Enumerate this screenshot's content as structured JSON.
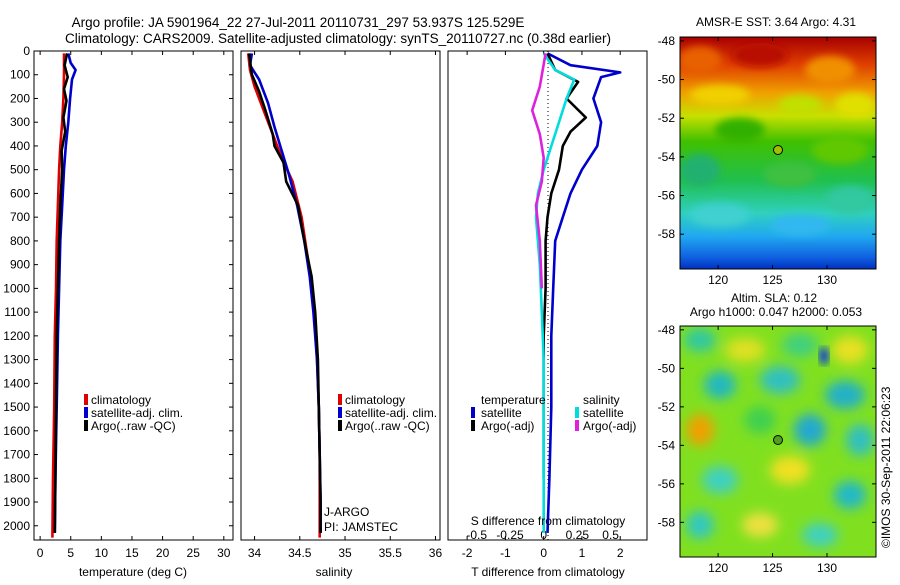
{
  "header": {
    "line1": "Argo profile: JA 5901964_22 27-Jul-2011 20110731_297 53.937S 125.529E",
    "line2": "Climatology: CARS2009. Satellite-adjusted climatology: synTS_20110727.nc (0.38d earlier)"
  },
  "colors": {
    "climatology": "#dd0000",
    "satellite": "#0000cc",
    "argo": "#000000",
    "sal_satellite": "#00dddd",
    "sal_argo": "#dd22dd"
  },
  "chart_data": [
    {
      "type": "line",
      "panel": "temperature",
      "xlabel": "temperature (deg C)",
      "xlim": [
        -1,
        31.5
      ],
      "xticks": [
        0,
        5,
        10,
        15,
        20,
        25,
        30
      ],
      "ylim": [
        0,
        2060
      ],
      "yticks": [
        0,
        100,
        200,
        300,
        400,
        500,
        600,
        700,
        800,
        900,
        1000,
        1100,
        1200,
        1300,
        1400,
        1500,
        1600,
        1700,
        1800,
        1900,
        2000
      ],
      "legend": [
        "climatology",
        "satellite-adj. clim.",
        "Argo(..raw -QC)"
      ],
      "series": [
        {
          "name": "climatology",
          "color": "#dd0000",
          "points": [
            [
              3.9,
              10
            ],
            [
              3.9,
              50
            ],
            [
              3.9,
              100
            ],
            [
              3.8,
              200
            ],
            [
              3.6,
              300
            ],
            [
              3.3,
              400
            ],
            [
              3.1,
              500
            ],
            [
              2.9,
              650
            ],
            [
              2.7,
              800
            ],
            [
              2.6,
              1000
            ],
            [
              2.4,
              1200
            ],
            [
              2.3,
              1500
            ],
            [
              2.1,
              1800
            ],
            [
              2.0,
              2050
            ]
          ]
        },
        {
          "name": "satellite-adj. clim.",
          "color": "#0000cc",
          "points": [
            [
              4.6,
              10
            ],
            [
              5.0,
              50
            ],
            [
              5.8,
              80
            ],
            [
              5.2,
              120
            ],
            [
              4.9,
              200
            ],
            [
              4.6,
              300
            ],
            [
              4.2,
              400
            ],
            [
              3.9,
              500
            ],
            [
              3.6,
              650
            ],
            [
              3.3,
              800
            ],
            [
              3.1,
              1000
            ],
            [
              2.9,
              1200
            ],
            [
              2.7,
              1500
            ],
            [
              2.5,
              1800
            ],
            [
              2.4,
              2030
            ]
          ]
        },
        {
          "name": "Argo(..raw -QC)",
          "color": "#000000",
          "points": [
            [
              4.4,
              10
            ],
            [
              4.0,
              60
            ],
            [
              4.5,
              110
            ],
            [
              3.9,
              160
            ],
            [
              4.3,
              210
            ],
            [
              3.8,
              280
            ],
            [
              4.1,
              340
            ],
            [
              3.5,
              420
            ],
            [
              3.6,
              500
            ],
            [
              3.3,
              650
            ],
            [
              3.1,
              800
            ],
            [
              2.9,
              1000
            ],
            [
              2.7,
              1200
            ],
            [
              2.6,
              1500
            ],
            [
              2.5,
              1800
            ],
            [
              2.4,
              2030
            ]
          ]
        }
      ]
    },
    {
      "type": "line",
      "panel": "salinity",
      "xlabel": "salinity",
      "xlim": [
        33.85,
        36.05
      ],
      "xticks": [
        34,
        34.5,
        35,
        35.5,
        36
      ],
      "ylim": [
        0,
        2060
      ],
      "legend": [
        "climatology",
        "satellite-adj. clim.",
        "Argo(..raw -QC)"
      ],
      "series": [
        {
          "name": "climatology",
          "color": "#dd0000",
          "points": [
            [
              33.93,
              10
            ],
            [
              33.95,
              80
            ],
            [
              34.0,
              150
            ],
            [
              34.1,
              250
            ],
            [
              34.2,
              350
            ],
            [
              34.3,
              450
            ],
            [
              34.42,
              550
            ],
            [
              34.52,
              700
            ],
            [
              34.6,
              900
            ],
            [
              34.66,
              1100
            ],
            [
              34.69,
              1300
            ],
            [
              34.71,
              1500
            ],
            [
              34.72,
              1700
            ],
            [
              34.72,
              1900
            ],
            [
              34.72,
              2050
            ]
          ]
        },
        {
          "name": "satellite-adj. clim.",
          "color": "#0000cc",
          "points": [
            [
              33.97,
              10
            ],
            [
              33.95,
              60
            ],
            [
              34.05,
              120
            ],
            [
              34.15,
              220
            ],
            [
              34.22,
              320
            ],
            [
              34.3,
              420
            ],
            [
              34.38,
              520
            ],
            [
              34.47,
              650
            ],
            [
              34.55,
              800
            ],
            [
              34.61,
              950
            ],
            [
              34.65,
              1100
            ],
            [
              34.69,
              1300
            ],
            [
              34.71,
              1500
            ],
            [
              34.72,
              1700
            ],
            [
              34.73,
              1900
            ],
            [
              34.73,
              2030
            ]
          ]
        },
        {
          "name": "Argo(..raw -QC)",
          "color": "#000000",
          "points": [
            [
              33.94,
              10
            ],
            [
              33.97,
              100
            ],
            [
              34.05,
              170
            ],
            [
              34.12,
              250
            ],
            [
              34.2,
              350
            ],
            [
              34.22,
              400
            ],
            [
              34.32,
              470
            ],
            [
              34.35,
              550
            ],
            [
              34.48,
              650
            ],
            [
              34.55,
              800
            ],
            [
              34.63,
              950
            ],
            [
              34.67,
              1100
            ],
            [
              34.7,
              1300
            ],
            [
              34.71,
              1500
            ],
            [
              34.72,
              1700
            ],
            [
              34.73,
              1900
            ],
            [
              34.73,
              2030
            ]
          ]
        }
      ],
      "annotations": [
        "J-ARGO",
        "PI: JAMSTEC"
      ]
    },
    {
      "type": "line",
      "panel": "difference",
      "xlabel": "T difference from climatology",
      "xlabel_top": "S difference from climatology",
      "xlim": [
        -2.5,
        2.7
      ],
      "xticks": [
        -2,
        -1,
        0,
        1,
        2
      ],
      "xticks_top": [
        "-0.5",
        "-0.25",
        "0",
        "0.25",
        "0.5"
      ],
      "ylim": [
        0,
        2060
      ],
      "legend": [
        "temperature",
        "satellite",
        "Argo(-adj)",
        "salinity",
        "satellite",
        "Argo(-adj)"
      ],
      "series": [
        {
          "name": "T satellite",
          "color": "#0000cc",
          "points": [
            [
              0.1,
              10
            ],
            [
              0.7,
              60
            ],
            [
              2.0,
              90
            ],
            [
              1.5,
              110
            ],
            [
              1.3,
              200
            ],
            [
              1.5,
              300
            ],
            [
              1.4,
              400
            ],
            [
              1.0,
              500
            ],
            [
              0.7,
              600
            ],
            [
              0.5,
              700
            ],
            [
              0.3,
              800
            ],
            [
              0.25,
              1000
            ],
            [
              0.2,
              1200
            ],
            [
              0.2,
              1500
            ],
            [
              0.15,
              1800
            ],
            [
              0.1,
              2030
            ]
          ]
        },
        {
          "name": "T Argo(-adj)",
          "color": "#000000",
          "points": [
            [
              0.1,
              10
            ],
            [
              0.3,
              80
            ],
            [
              0.9,
              130
            ],
            [
              0.6,
              200
            ],
            [
              1.1,
              280
            ],
            [
              0.7,
              340
            ],
            [
              0.5,
              400
            ],
            [
              0.4,
              500
            ],
            [
              0.2,
              600
            ],
            [
              0.1,
              700
            ],
            [
              0.05,
              800
            ],
            [
              0.05,
              1000
            ],
            [
              0.0,
              1200
            ],
            [
              0.0,
              1500
            ],
            [
              0.0,
              1800
            ]
          ]
        },
        {
          "name": "S satellite",
          "color": "#00dddd",
          "points": [
            [
              0.0,
              10
            ],
            [
              0.3,
              80
            ],
            [
              0.8,
              120
            ],
            [
              0.6,
              200
            ],
            [
              0.4,
              300
            ],
            [
              0.2,
              400
            ],
            [
              0.0,
              500
            ],
            [
              -0.15,
              600
            ],
            [
              -0.2,
              700
            ],
            [
              -0.1,
              900
            ],
            [
              -0.05,
              1100
            ],
            [
              0.0,
              1300
            ],
            [
              0.0,
              1500
            ],
            [
              0.0,
              1800
            ],
            [
              0.0,
              2030
            ]
          ]
        },
        {
          "name": "S Argo(-adj)",
          "color": "#dd22dd",
          "points": [
            [
              0.05,
              10
            ],
            [
              -0.1,
              150
            ],
            [
              -0.3,
              250
            ],
            [
              -0.1,
              350
            ],
            [
              0.0,
              450
            ],
            [
              -0.05,
              550
            ],
            [
              -0.2,
              650
            ],
            [
              -0.1,
              800
            ],
            [
              -0.05,
              1000
            ]
          ]
        }
      ]
    },
    {
      "type": "heatmap",
      "panel": "sst-map",
      "title": "AMSR-E SST: 3.64 Argo: 4.31",
      "xticks": [
        120,
        125,
        130
      ],
      "yticks": [
        -48,
        -50,
        -52,
        -54,
        -56,
        -58
      ],
      "xlim": [
        116.5,
        134.5
      ],
      "ylim": [
        -59.8,
        -47.8
      ],
      "marker": [
        125.529,
        -53.937
      ]
    },
    {
      "type": "heatmap",
      "panel": "sla-map",
      "title": "Altim. SLA: 0.12",
      "subtitle": "Argo h1000: 0.047 h2000: 0.053",
      "xticks": [
        120,
        125,
        130
      ],
      "yticks": [
        -48,
        -50,
        -52,
        -54,
        -56,
        -58
      ],
      "xlim": [
        116.5,
        134.5
      ],
      "ylim": [
        -59.8,
        -47.8
      ],
      "marker": [
        125.529,
        -53.937
      ]
    }
  ],
  "footer": {
    "stamp": "©IMOS 30-Sep-2011 22:06:23"
  }
}
